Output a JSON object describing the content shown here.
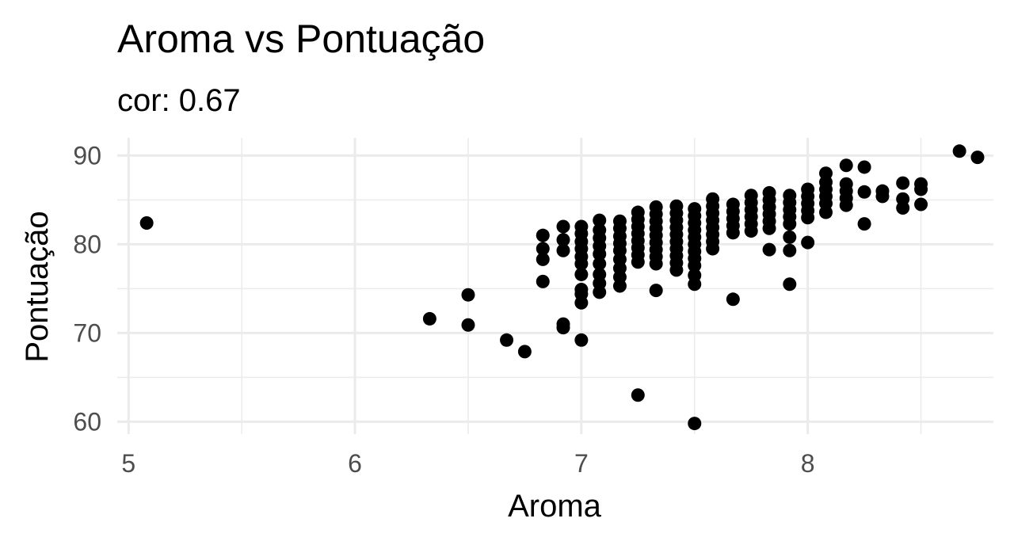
{
  "chart_data": {
    "type": "scatter",
    "title": "Aroma vs Pontuação",
    "subtitle": "cor: 0.67",
    "xlabel": "Aroma",
    "ylabel": "Pontuação",
    "xlim": [
      4.95,
      8.82
    ],
    "ylim": [
      58.6,
      92.0
    ],
    "x_ticks": [
      5,
      6,
      7,
      8
    ],
    "x_tick_labels": [
      "5",
      "6",
      "7",
      "8"
    ],
    "y_ticks": [
      60,
      70,
      80,
      90
    ],
    "y_tick_labels": [
      "60",
      "70",
      "80",
      "90"
    ],
    "grid": true,
    "legend": "none",
    "point_color": "#000000",
    "points": [
      [
        5.08,
        82.4
      ],
      [
        6.33,
        71.6
      ],
      [
        6.5,
        74.3
      ],
      [
        6.5,
        70.9
      ],
      [
        6.67,
        69.2
      ],
      [
        6.75,
        67.9
      ],
      [
        6.83,
        81.0
      ],
      [
        6.83,
        79.5
      ],
      [
        6.83,
        78.3
      ],
      [
        6.83,
        75.8
      ],
      [
        6.92,
        82.0
      ],
      [
        6.92,
        80.5
      ],
      [
        6.92,
        79.3
      ],
      [
        6.92,
        71.0
      ],
      [
        6.92,
        70.6
      ],
      [
        7.0,
        82.0
      ],
      [
        7.0,
        81.2
      ],
      [
        7.0,
        80.3
      ],
      [
        7.0,
        79.5
      ],
      [
        7.0,
        78.6
      ],
      [
        7.0,
        77.8
      ],
      [
        7.0,
        76.6
      ],
      [
        7.0,
        74.9
      ],
      [
        7.0,
        74.4
      ],
      [
        7.0,
        73.4
      ],
      [
        7.0,
        69.2
      ],
      [
        7.08,
        82.7
      ],
      [
        7.08,
        81.6
      ],
      [
        7.08,
        80.7
      ],
      [
        7.08,
        79.8
      ],
      [
        7.08,
        78.9
      ],
      [
        7.08,
        77.8
      ],
      [
        7.08,
        76.6
      ],
      [
        7.08,
        75.6
      ],
      [
        7.08,
        74.6
      ],
      [
        7.17,
        82.6
      ],
      [
        7.17,
        81.8
      ],
      [
        7.17,
        80.9
      ],
      [
        7.17,
        80.1
      ],
      [
        7.17,
        79.3
      ],
      [
        7.17,
        78.3
      ],
      [
        7.17,
        77.3
      ],
      [
        7.17,
        76.3
      ],
      [
        7.17,
        75.3
      ],
      [
        7.25,
        83.6
      ],
      [
        7.25,
        82.8
      ],
      [
        7.25,
        82.0
      ],
      [
        7.25,
        81.2
      ],
      [
        7.25,
        80.4
      ],
      [
        7.25,
        79.6
      ],
      [
        7.25,
        78.8
      ],
      [
        7.25,
        78.0
      ],
      [
        7.25,
        63.0
      ],
      [
        7.33,
        84.2
      ],
      [
        7.33,
        83.4
      ],
      [
        7.33,
        82.6
      ],
      [
        7.33,
        81.8
      ],
      [
        7.33,
        81.0
      ],
      [
        7.33,
        80.2
      ],
      [
        7.33,
        79.4
      ],
      [
        7.33,
        78.6
      ],
      [
        7.33,
        77.8
      ],
      [
        7.33,
        74.8
      ],
      [
        7.42,
        84.3
      ],
      [
        7.42,
        83.5
      ],
      [
        7.42,
        82.7
      ],
      [
        7.42,
        81.9
      ],
      [
        7.42,
        81.1
      ],
      [
        7.42,
        80.3
      ],
      [
        7.42,
        79.5
      ],
      [
        7.42,
        78.7
      ],
      [
        7.42,
        77.9
      ],
      [
        7.42,
        77.1
      ],
      [
        7.5,
        84.0
      ],
      [
        7.5,
        83.2
      ],
      [
        7.5,
        82.4
      ],
      [
        7.5,
        81.6
      ],
      [
        7.5,
        80.8
      ],
      [
        7.5,
        80.0
      ],
      [
        7.5,
        79.2
      ],
      [
        7.5,
        78.4
      ],
      [
        7.5,
        77.6
      ],
      [
        7.5,
        76.5
      ],
      [
        7.5,
        75.5
      ],
      [
        7.5,
        59.8
      ],
      [
        7.58,
        85.1
      ],
      [
        7.58,
        84.3
      ],
      [
        7.58,
        83.5
      ],
      [
        7.58,
        82.7
      ],
      [
        7.58,
        81.9
      ],
      [
        7.58,
        81.1
      ],
      [
        7.58,
        80.3
      ],
      [
        7.58,
        79.5
      ],
      [
        7.67,
        84.5
      ],
      [
        7.67,
        83.7
      ],
      [
        7.67,
        82.9
      ],
      [
        7.67,
        82.1
      ],
      [
        7.67,
        81.3
      ],
      [
        7.67,
        73.8
      ],
      [
        7.75,
        85.5
      ],
      [
        7.75,
        84.7
      ],
      [
        7.75,
        83.9
      ],
      [
        7.75,
        83.1
      ],
      [
        7.75,
        82.3
      ],
      [
        7.75,
        81.5
      ],
      [
        7.83,
        85.8
      ],
      [
        7.83,
        85.0
      ],
      [
        7.83,
        84.2
      ],
      [
        7.83,
        83.4
      ],
      [
        7.83,
        82.6
      ],
      [
        7.83,
        81.8
      ],
      [
        7.83,
        79.4
      ],
      [
        7.92,
        85.5
      ],
      [
        7.92,
        84.7
      ],
      [
        7.92,
        83.9
      ],
      [
        7.92,
        83.1
      ],
      [
        7.92,
        82.3
      ],
      [
        7.92,
        80.8
      ],
      [
        7.92,
        79.3
      ],
      [
        7.92,
        75.5
      ],
      [
        8.0,
        86.2
      ],
      [
        8.0,
        85.4
      ],
      [
        8.0,
        84.6
      ],
      [
        8.0,
        83.8
      ],
      [
        8.0,
        83.0
      ],
      [
        8.0,
        80.2
      ],
      [
        8.08,
        88.0
      ],
      [
        8.08,
        87.0
      ],
      [
        8.08,
        86.2
      ],
      [
        8.08,
        85.4
      ],
      [
        8.08,
        84.6
      ],
      [
        8.08,
        83.6
      ],
      [
        8.17,
        88.9
      ],
      [
        8.17,
        86.8
      ],
      [
        8.17,
        86.0
      ],
      [
        8.17,
        85.2
      ],
      [
        8.17,
        84.4
      ],
      [
        8.25,
        88.7
      ],
      [
        8.25,
        85.9
      ],
      [
        8.25,
        82.3
      ],
      [
        8.33,
        86.0
      ],
      [
        8.33,
        85.4
      ],
      [
        8.42,
        86.9
      ],
      [
        8.42,
        85.1
      ],
      [
        8.42,
        84.1
      ],
      [
        8.5,
        86.8
      ],
      [
        8.5,
        86.2
      ],
      [
        8.5,
        84.5
      ],
      [
        8.67,
        90.5
      ],
      [
        8.75,
        89.8
      ]
    ]
  }
}
